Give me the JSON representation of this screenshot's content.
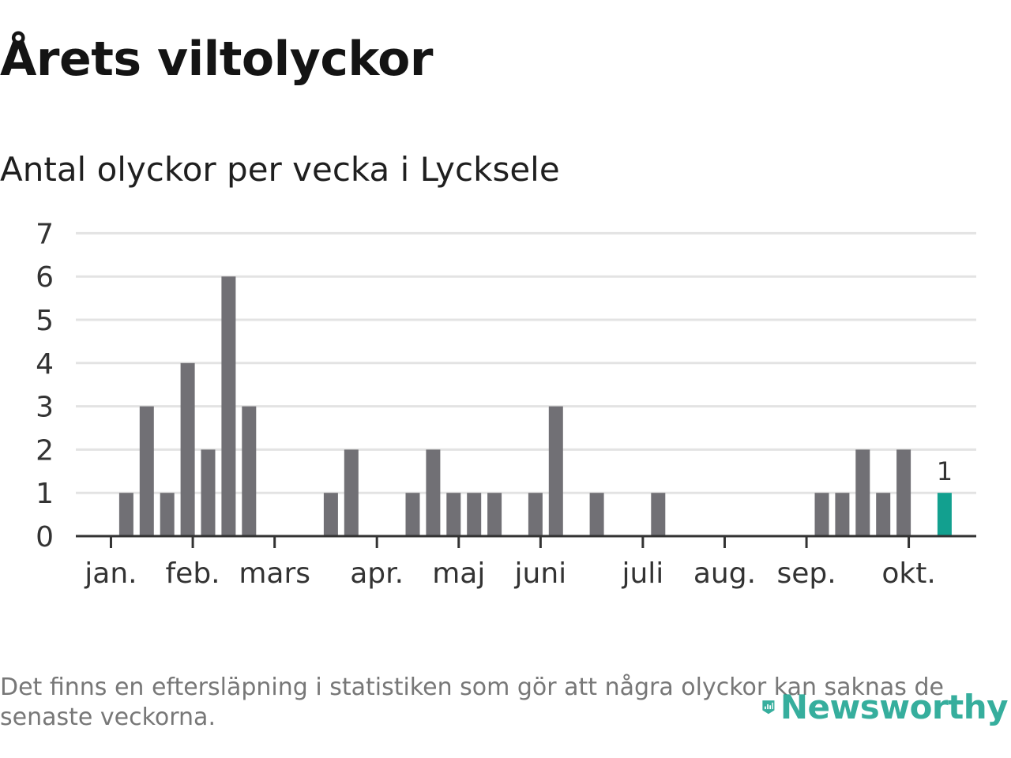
{
  "title": "Årets viltolyckor",
  "subtitle": "Antal olyckor per vecka i Lycksele",
  "footnote": "Det finns en eftersläpning i statistiken som gör att några olyckor kan saknas de senaste veckorna.",
  "logo": {
    "text": "Newsworthy",
    "icon": "bar-chart-badge-icon"
  },
  "colors": {
    "bar": "#717075",
    "highlight": "#12a08f",
    "grid": "#e3e3e3",
    "axis": "#333333",
    "text": "#333333"
  },
  "chart_data": {
    "type": "bar",
    "title": "Antal olyckor per vecka i Lycksele",
    "xlabel": "",
    "ylabel": "",
    "ylim": [
      0,
      7
    ],
    "yticks": [
      "0",
      "1",
      "2",
      "3",
      "4",
      "5",
      "6",
      "7"
    ],
    "x": [
      1,
      2,
      3,
      4,
      5,
      6,
      7,
      8,
      9,
      10,
      11,
      12,
      13,
      14,
      15,
      16,
      17,
      18,
      19,
      20,
      21,
      22,
      23,
      24,
      25,
      26,
      27,
      28,
      29,
      30,
      31,
      32,
      33,
      34,
      35,
      36,
      37,
      38,
      39,
      40,
      41,
      42
    ],
    "values": [
      0,
      1,
      3,
      1,
      4,
      2,
      6,
      3,
      0,
      0,
      0,
      1,
      2,
      0,
      0,
      1,
      2,
      1,
      1,
      1,
      0,
      1,
      3,
      0,
      1,
      0,
      0,
      1,
      0,
      0,
      0,
      0,
      0,
      0,
      0,
      1,
      1,
      2,
      1,
      2,
      0,
      1
    ],
    "month_ticks": [
      {
        "label": "jan.",
        "week": 1.25
      },
      {
        "label": "feb.",
        "week": 5.25
      },
      {
        "label": "mars",
        "week": 9.25
      },
      {
        "label": "apr.",
        "week": 14.25
      },
      {
        "label": "maj",
        "week": 18.25
      },
      {
        "label": "juni",
        "week": 22.25
      },
      {
        "label": "juli",
        "week": 27.25
      },
      {
        "label": "aug.",
        "week": 31.25
      },
      {
        "label": "sep.",
        "week": 35.25
      },
      {
        "label": "okt.",
        "week": 40.25
      }
    ],
    "highlight": {
      "week": 42,
      "value": 1,
      "label": "1"
    },
    "grid": true,
    "legend": "none"
  }
}
